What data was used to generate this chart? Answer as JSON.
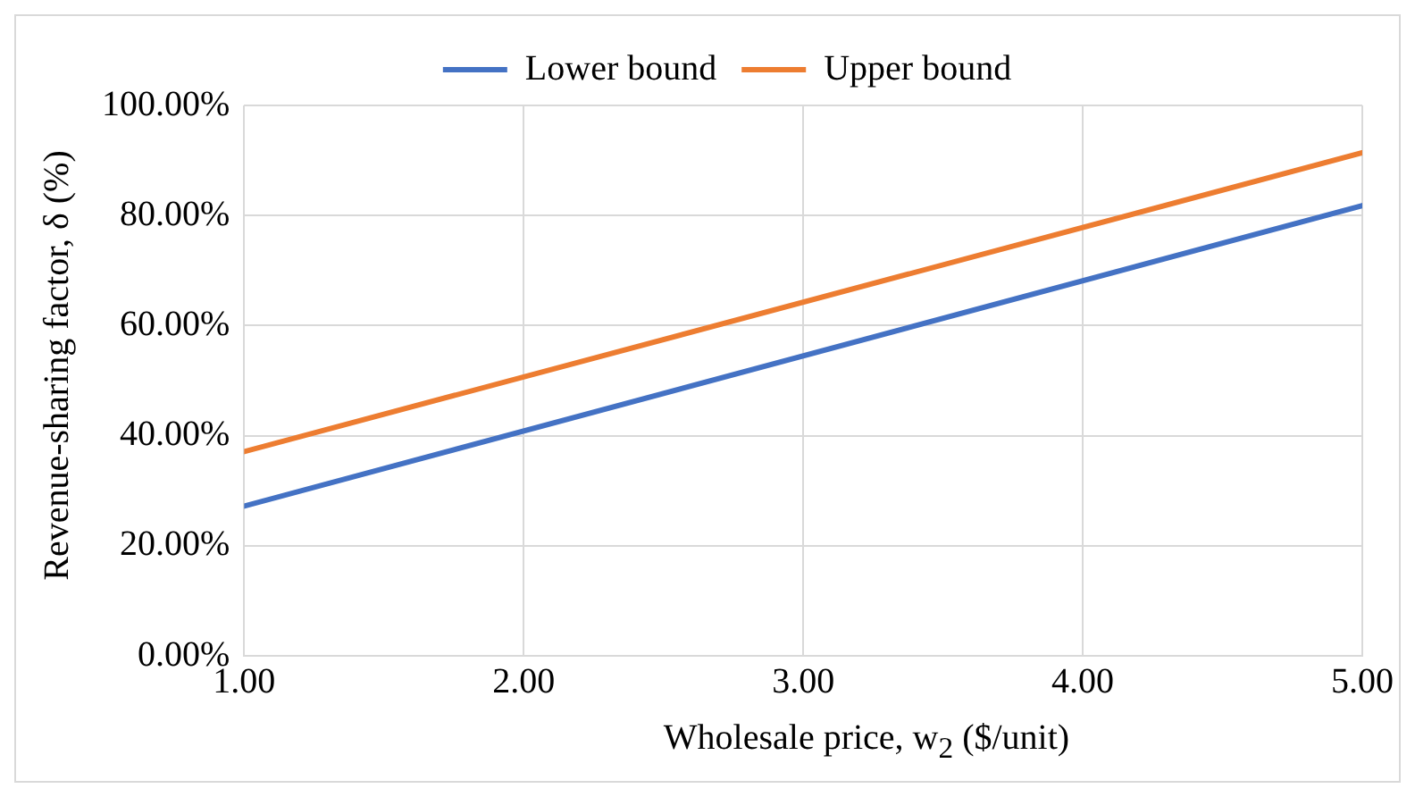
{
  "chart_data": {
    "type": "line",
    "xlabel": "Wholesale price, w$_{2}$ ($/unit)",
    "ylabel": "Revenue-sharing factor, δ (%)",
    "x": [
      1,
      5
    ],
    "series": [
      {
        "name": "Lower bound",
        "color": "#4472c4",
        "values": [
          27.2,
          81.8
        ]
      },
      {
        "name": "Upper bound",
        "color": "#ed7d31",
        "values": [
          37.1,
          91.4
        ]
      }
    ],
    "xlim": [
      1,
      5
    ],
    "xticks": [
      {
        "value": 1,
        "label": "1.00"
      },
      {
        "value": 2,
        "label": "2.00"
      },
      {
        "value": 3,
        "label": "3.00"
      },
      {
        "value": 4,
        "label": "4.00"
      },
      {
        "value": 5,
        "label": "5.00"
      }
    ],
    "ylim": [
      0,
      100
    ],
    "yticks": [
      {
        "value": 0,
        "label": "0.00%"
      },
      {
        "value": 20,
        "label": "20.00%"
      },
      {
        "value": 40,
        "label": "40.00%"
      },
      {
        "value": 60,
        "label": "60.00%"
      },
      {
        "value": 80,
        "label": "80.00%"
      },
      {
        "value": 100,
        "label": "100.00%"
      }
    ],
    "grid": true,
    "legend": "top",
    "marker": "none",
    "line_style": "solid"
  }
}
